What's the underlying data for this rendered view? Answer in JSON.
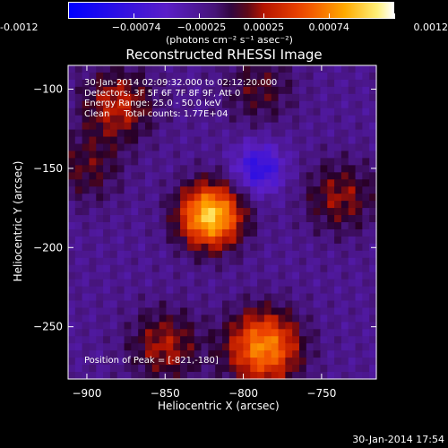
{
  "colorbar": {
    "ticks": [
      "-0.0012",
      "−0.00074",
      "−0.00025",
      "0.00025",
      "0.00074",
      "0.0012"
    ],
    "units": "(photons cm⁻² s⁻¹ asec⁻²)",
    "min": -0.0012,
    "max": 0.0012
  },
  "chart_data": {
    "type": "heatmap",
    "title": "Reconstructed RHESSI Image",
    "xlabel": "Heliocentric X (arcsec)",
    "ylabel": "Heliocentric Y (arcsec)",
    "xlim": [
      -912,
      -715
    ],
    "ylim": [
      -283,
      -85
    ],
    "xticks": [
      "−900",
      "−850",
      "−800",
      "−750"
    ],
    "yticks": [
      "−100",
      "−150",
      "−200",
      "−250"
    ],
    "annotations": [
      "30-Jan-2014 02:09:32.000 to 02:12:20.000",
      "Detectors: 3F 5F 6F 7F 8F 9F, Att 0",
      "Energy Range: 25.0 - 50.0 keV",
      "Clean     Total counts: 1.77E+04"
    ],
    "peak_label": "Position of Peak = [-821,-180]",
    "peak": [
      -821,
      -180
    ],
    "sources": [
      {
        "x": -821,
        "y": -180,
        "intensity": 0.0012
      },
      {
        "x": -787,
        "y": -263,
        "intensity": 0.00095
      },
      {
        "x": -880,
        "y": -110,
        "intensity": 0.0005
      },
      {
        "x": -850,
        "y": -262,
        "intensity": 0.00045
      },
      {
        "x": -738,
        "y": -168,
        "intensity": 0.0004
      },
      {
        "x": -790,
        "y": -100,
        "intensity": 0.0003
      },
      {
        "x": -900,
        "y": -150,
        "intensity": 0.0003
      },
      {
        "x": -790,
        "y": -150,
        "intensity": -0.0006
      }
    ]
  },
  "footer": {
    "timestamp": "30-Jan-2014 17:54"
  }
}
